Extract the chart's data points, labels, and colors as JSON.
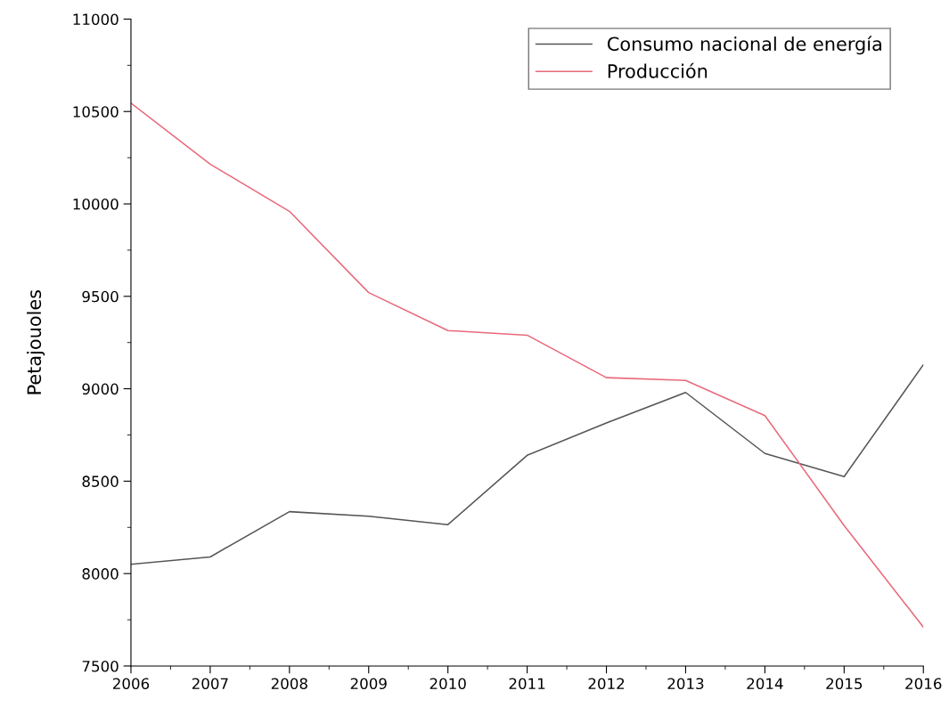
{
  "chart_data": {
    "type": "line",
    "ylabel": "Petajouoles",
    "x": [
      2006,
      2007,
      2008,
      2009,
      2010,
      2011,
      2012,
      2013,
      2014,
      2015,
      2016
    ],
    "series": [
      {
        "name": "Consumo nacional de energía",
        "color": "#555555",
        "values": [
          8050,
          8090,
          8335,
          8310,
          8265,
          8640,
          8815,
          8980,
          8650,
          8525,
          9130
        ]
      },
      {
        "name": "Producción",
        "color": "#e8697b",
        "values": [
          10545,
          10215,
          9960,
          9520,
          9315,
          9290,
          9060,
          9045,
          8855,
          8260,
          7710
        ]
      }
    ],
    "xlim": [
      2006,
      2016
    ],
    "xticks": [
      2006,
      2007,
      2008,
      2009,
      2010,
      2011,
      2012,
      2013,
      2014,
      2015,
      2016
    ],
    "ylim": [
      7500,
      11000
    ],
    "yticks": [
      7500,
      8000,
      8500,
      9000,
      9500,
      10000,
      10500,
      11000
    ],
    "legend": "top right",
    "grid": false,
    "marker": "none",
    "line_style": "solid"
  }
}
